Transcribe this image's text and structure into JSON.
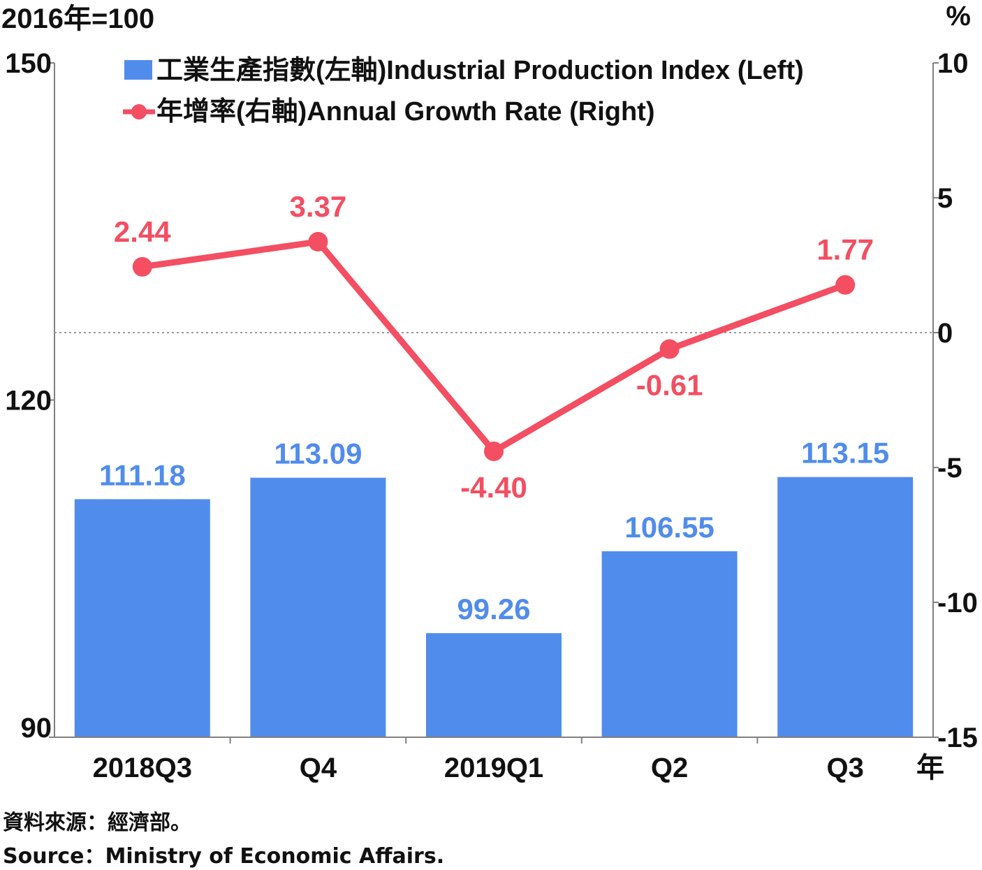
{
  "chart_data": {
    "type": "bar",
    "categories": [
      "2018Q3",
      "Q4",
      "2019Q1",
      "Q2",
      "Q3"
    ],
    "x_unit": "年",
    "series": [
      {
        "name": "工業生產指數(左軸)Industrial Production Index (Left)",
        "type": "bar",
        "axis": "left",
        "values": [
          111.18,
          113.09,
          99.26,
          106.55,
          113.15
        ],
        "labels": [
          "111.18",
          "113.09",
          "99.26",
          "106.55",
          "113.15"
        ]
      },
      {
        "name": "年增率(右軸)Annual Growth Rate (Right)",
        "type": "line",
        "axis": "right",
        "values": [
          2.44,
          3.37,
          -4.4,
          -0.61,
          1.77
        ],
        "labels": [
          "2.44",
          "3.37",
          "-4.40",
          "-0.61",
          "1.77"
        ]
      }
    ],
    "left_axis": {
      "unit": "2016年=100",
      "ylim": [
        90,
        150
      ],
      "ticks": [
        90,
        120,
        150
      ],
      "tick_labels": [
        "90",
        "120",
        "150"
      ]
    },
    "right_axis": {
      "unit": "%",
      "ylim": [
        -15,
        10
      ],
      "ticks": [
        -15,
        -10,
        -5,
        0,
        5,
        10
      ],
      "tick_labels": [
        "-15",
        "-10",
        "-5",
        "0",
        "5",
        "10"
      ]
    },
    "zero_line": "dotted",
    "legend_position": "top",
    "colors": {
      "bar": "#508CEC",
      "bar_label": "#508CEC",
      "line": "#F34E62",
      "axis": "#808080",
      "text": "#111111"
    }
  },
  "source": {
    "zh": "資料來源：經濟部。",
    "en": "Source：Ministry of Economic Affairs."
  }
}
